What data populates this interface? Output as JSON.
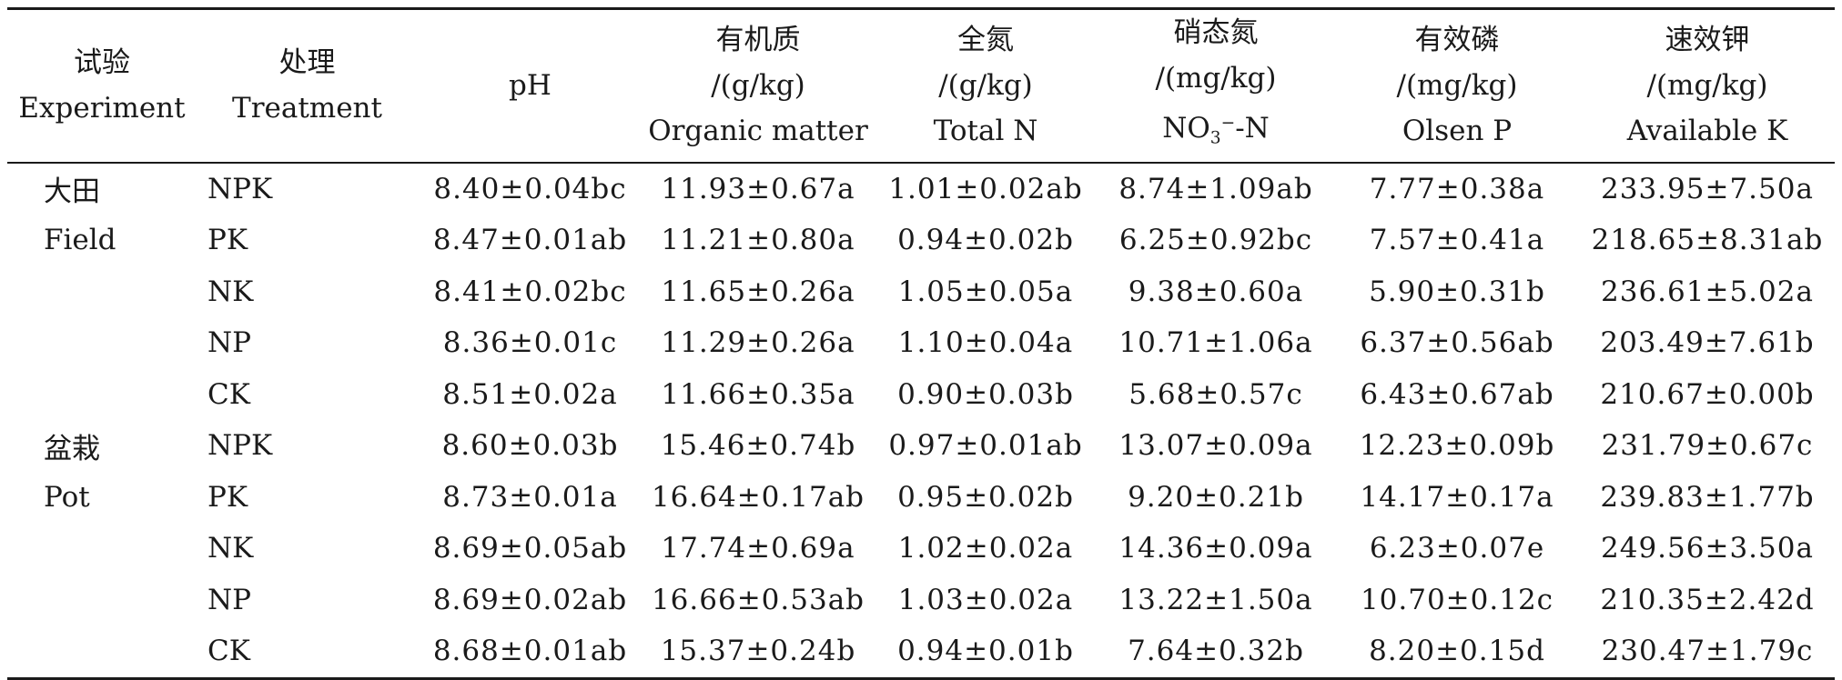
{
  "table": {
    "headers": {
      "experiment": [
        "试验",
        "Experiment"
      ],
      "treatment": [
        "处理",
        "Treatment"
      ],
      "ph": [
        "pH"
      ],
      "organic_matter": [
        "有机质",
        "/(g/kg)",
        "Organic matter"
      ],
      "total_n": [
        "全氮",
        "/(g/kg)",
        "Total N"
      ],
      "nitrate_n": {
        "line1": "硝态氮",
        "line2": "/(mg/kg)",
        "line3_base": "NO",
        "line3_sub": "3",
        "line3_sup": "−",
        "line3_tail": "-N"
      },
      "olsen_p": [
        "有效磷",
        "/(mg/kg)",
        "Olsen P"
      ],
      "available_k": [
        "速效钾",
        "/(mg/kg)",
        "Available K"
      ]
    },
    "rows": [
      {
        "experiment": "大田",
        "treatment": "NPK",
        "ph": "8.40±0.04bc",
        "om": "11.93±0.67a",
        "tn": "1.01±0.02ab",
        "no3": "8.74±1.09ab",
        "op": "7.77±0.38a",
        "ak": "233.95±7.50a"
      },
      {
        "experiment": "Field",
        "treatment": "PK",
        "ph": "8.47±0.01ab",
        "om": "11.21±0.80a",
        "tn": "0.94±0.02b",
        "no3": "6.25±0.92bc",
        "op": "7.57±0.41a",
        "ak": "218.65±8.31ab"
      },
      {
        "experiment": "",
        "treatment": "NK",
        "ph": "8.41±0.02bc",
        "om": "11.65±0.26a",
        "tn": "1.05±0.05a",
        "no3": "9.38±0.60a",
        "op": "5.90±0.31b",
        "ak": "236.61±5.02a"
      },
      {
        "experiment": "",
        "treatment": "NP",
        "ph": "8.36±0.01c",
        "om": "11.29±0.26a",
        "tn": "1.10±0.04a",
        "no3": "10.71±1.06a",
        "op": "6.37±0.56ab",
        "ak": "203.49±7.61b"
      },
      {
        "experiment": "",
        "treatment": "CK",
        "ph": "8.51±0.02a",
        "om": "11.66±0.35a",
        "tn": "0.90±0.03b",
        "no3": "5.68±0.57c",
        "op": "6.43±0.67ab",
        "ak": "210.67±0.00b"
      },
      {
        "experiment": "盆栽",
        "treatment": "NPK",
        "ph": "8.60±0.03b",
        "om": "15.46±0.74b",
        "tn": "0.97±0.01ab",
        "no3": "13.07±0.09a",
        "op": "12.23±0.09b",
        "ak": "231.79±0.67c"
      },
      {
        "experiment": "Pot",
        "treatment": "PK",
        "ph": "8.73±0.01a",
        "om": "16.64±0.17ab",
        "tn": "0.95±0.02b",
        "no3": "9.20±0.21b",
        "op": "14.17±0.17a",
        "ak": "239.83±1.77b"
      },
      {
        "experiment": "",
        "treatment": "NK",
        "ph": "8.69±0.05ab",
        "om": "17.74±0.69a",
        "tn": "1.02±0.02a",
        "no3": "14.36±0.09a",
        "op": "6.23±0.07e",
        "ak": "249.56±3.50a"
      },
      {
        "experiment": "",
        "treatment": "NP",
        "ph": "8.69±0.02ab",
        "om": "16.66±0.53ab",
        "tn": "1.03±0.02a",
        "no3": "13.22±1.50a",
        "op": "10.70±0.12c",
        "ak": "210.35±2.42d"
      },
      {
        "experiment": "",
        "treatment": "CK",
        "ph": "8.68±0.01ab",
        "om": "15.37±0.24b",
        "tn": "0.94±0.01b",
        "no3": "7.64±0.32b",
        "op": "8.20±0.15d",
        "ak": "230.47±1.79c"
      }
    ]
  }
}
